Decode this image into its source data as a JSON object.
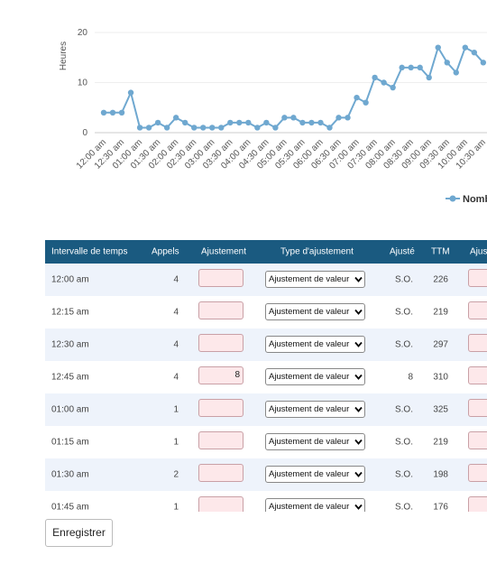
{
  "chart_data": {
    "type": "line",
    "y_label": "Heures",
    "categories": [
      "12:00 am",
      null,
      "12:30 am",
      null,
      "01:00 am",
      null,
      "01:30 am",
      null,
      "02:00 am",
      null,
      "02:30 am",
      null,
      "03:00 am",
      null,
      "03:30 am",
      null,
      "04:00 am",
      null,
      "04:30 am",
      null,
      "05:00 am",
      null,
      "05:30 am",
      null,
      "06:00 am",
      null,
      "06:30 am",
      null,
      "07:00 am",
      null,
      "07:30 am",
      null,
      "08:00 am",
      null,
      "08:30 am",
      null,
      "09:00 am",
      null,
      "09:30 am",
      null,
      "10:00 am",
      null,
      "10:30 am"
    ],
    "series": [
      {
        "name": "Nomb",
        "color": "#6fa8d0",
        "values": [
          4,
          4,
          4,
          8,
          1,
          1,
          2,
          1,
          3,
          2,
          1,
          1,
          1,
          1,
          2,
          2,
          2,
          1,
          2,
          1,
          3,
          3,
          2,
          2,
          2,
          1,
          3,
          3,
          7,
          6,
          11,
          10,
          9,
          13,
          13,
          13,
          11,
          17,
          14,
          12,
          17,
          16,
          14
        ]
      }
    ],
    "ylim": [
      0,
      20
    ],
    "yticks": [
      0,
      10,
      20
    ],
    "grid": true
  },
  "table": {
    "headers": [
      "Intervalle de temps",
      "Appels",
      "Ajustement",
      "Type d'ajustement",
      "Ajusté",
      "TTM",
      "Ajus"
    ],
    "rows": [
      {
        "interval": "12:00 am",
        "calls": 4,
        "type": "Ajustement de valeur",
        "adjusted": "S.O.",
        "ttm": 226
      },
      {
        "interval": "12:15 am",
        "calls": 4,
        "type": "Ajustement de valeur",
        "adjusted": "S.O.",
        "ttm": 219
      },
      {
        "interval": "12:30 am",
        "calls": 4,
        "type": "Ajustement de valeur",
        "adjusted": "S.O.",
        "ttm": 297
      },
      {
        "interval": "12:45 am",
        "calls": 4,
        "adjustment": 8,
        "type": "Ajustement de valeur",
        "adjusted": 8,
        "ttm": 310
      },
      {
        "interval": "01:00 am",
        "calls": 1,
        "type": "Ajustement de valeur",
        "adjusted": "S.O.",
        "ttm": 325
      },
      {
        "interval": "01:15 am",
        "calls": 1,
        "type": "Ajustement de valeur",
        "adjusted": "S.O.",
        "ttm": 219
      },
      {
        "interval": "01:30 am",
        "calls": 2,
        "type": "Ajustement de valeur",
        "adjusted": "S.O.",
        "ttm": 198
      },
      {
        "interval": "01:45 am",
        "calls": 1,
        "type": "Ajustement de valeur",
        "adjusted": "S.O.",
        "ttm": 176
      }
    ]
  },
  "save_button": "Enregistrer"
}
